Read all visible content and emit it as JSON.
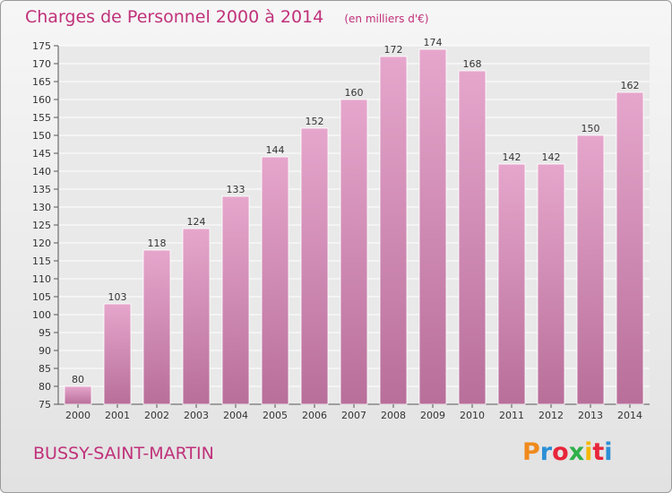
{
  "page": {
    "title": "Charges de Personnel 2000 à 2014",
    "unit": "(en milliers d'€)",
    "city": "BUSSY-SAINT-MARTIN",
    "logo_text": "Proxiti",
    "logo_colors": [
      "#f08a1c",
      "#2b8fd6",
      "#e8253a",
      "#2fb04a",
      "#f5b800",
      "#e8253a",
      "#2b8fd6"
    ]
  },
  "chart_data": {
    "type": "bar",
    "categories": [
      "2000",
      "2001",
      "2002",
      "2003",
      "2004",
      "2005",
      "2006",
      "2007",
      "2008",
      "2009",
      "2010",
      "2011",
      "2012",
      "2013",
      "2014"
    ],
    "values": [
      80,
      103,
      118,
      124,
      133,
      144,
      152,
      160,
      172,
      174,
      168,
      142,
      142,
      150,
      162
    ],
    "ylim": [
      75,
      175
    ],
    "yticks": [
      75,
      80,
      85,
      90,
      95,
      100,
      105,
      110,
      115,
      120,
      125,
      130,
      135,
      140,
      145,
      150,
      155,
      160,
      165,
      170,
      175
    ],
    "grid": true,
    "bar_color_top": "#e6a6cc",
    "bar_color_bottom": "#b86f9a",
    "plot_background": "#e9e9e9"
  }
}
